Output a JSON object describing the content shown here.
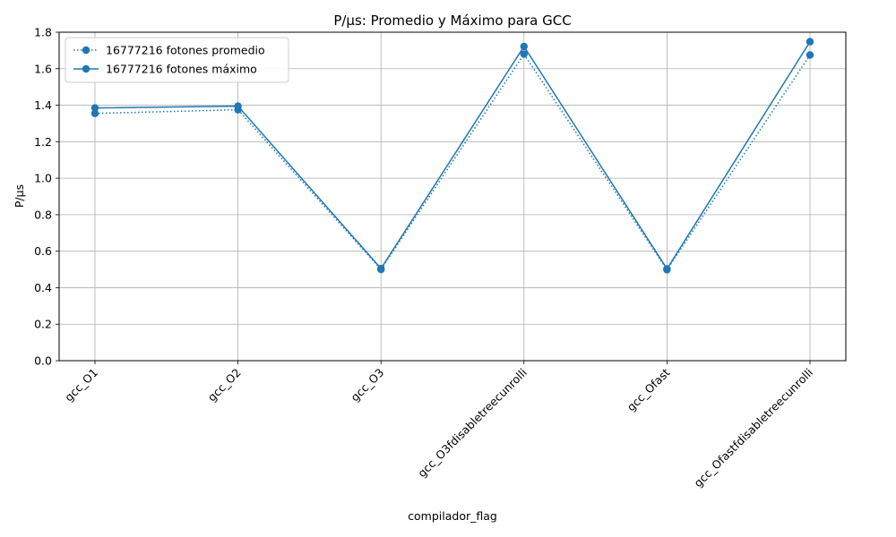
{
  "chart_data": {
    "type": "line",
    "title": "P/µs: Promedio y Máximo para GCC",
    "xlabel": "compilador_flag",
    "ylabel": "P/µs",
    "categories": [
      "gcc_O1",
      "gcc_O2",
      "gcc_O3",
      "gcc_O3fdisabletreecunrolli",
      "gcc_Ofast",
      "gcc_Ofastfdisabletreecunrolli"
    ],
    "ylim": [
      0,
      1.8
    ],
    "yticks": [
      "0.0",
      "0.2",
      "0.4",
      "0.6",
      "0.8",
      "1.0",
      "1.2",
      "1.4",
      "1.6",
      "1.8"
    ],
    "grid": true,
    "legend_position": "upper-left",
    "series": [
      {
        "name": "16777216 fotones promedio",
        "style": "dotted",
        "marker": "circle",
        "color": "#1f77b4",
        "values": [
          1.355,
          1.375,
          0.5,
          1.68,
          0.498,
          1.675
        ]
      },
      {
        "name": "16777216 fotones máximo",
        "style": "solid",
        "marker": "circle",
        "color": "#1f77b4",
        "values": [
          1.385,
          1.395,
          0.505,
          1.722,
          0.503,
          1.748
        ]
      }
    ]
  }
}
